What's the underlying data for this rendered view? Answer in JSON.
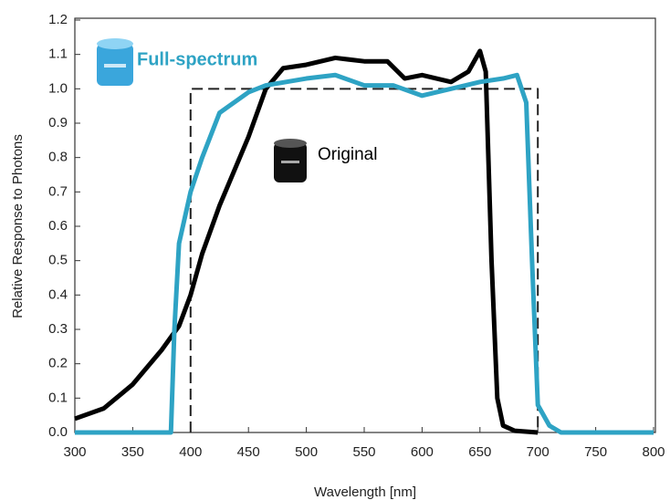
{
  "chart_data": {
    "type": "line",
    "x_label": "Wavelength [nm]",
    "y_label": "Relative Response to Photons",
    "xlim": [
      300,
      800
    ],
    "xticks": [
      300,
      350,
      400,
      450,
      500,
      550,
      600,
      650,
      700,
      750,
      800
    ],
    "ylim": [
      0,
      1.2
    ],
    "yticks": [
      {
        "value": 0,
        "label": "0.0"
      },
      0.1,
      0.2,
      0.3,
      0.4,
      0.5,
      0.6,
      0.7,
      0.8,
      0.9,
      {
        "value": 1,
        "label": "1.0"
      },
      1.1,
      1.2
    ],
    "series": [
      {
        "color": "#222222",
        "dash": true,
        "x": [
          400,
          400,
          700,
          700
        ],
        "values": [
          0,
          1,
          1,
          0
        ]
      },
      {
        "name": "Original",
        "color": "#000000",
        "x": [
          300,
          325,
          350,
          375,
          390,
          400,
          410,
          425,
          450,
          465,
          480,
          500,
          525,
          550,
          570,
          585,
          600,
          625,
          640,
          650,
          655,
          660,
          665,
          670,
          680,
          700
        ],
        "values": [
          0.04,
          0.07,
          0.14,
          0.24,
          0.31,
          0.4,
          0.52,
          0.66,
          0.86,
          1.0,
          1.06,
          1.07,
          1.09,
          1.08,
          1.08,
          1.03,
          1.04,
          1.02,
          1.05,
          1.11,
          1.05,
          0.5,
          0.1,
          0.02,
          0.005,
          0
        ]
      },
      {
        "name": "Full-spectrum",
        "color": "#2ea3c4",
        "x": [
          300,
          383,
          386,
          390,
          400,
          410,
          425,
          450,
          465,
          500,
          525,
          550,
          575,
          600,
          625,
          650,
          670,
          682,
          690,
          695,
          700,
          710,
          720,
          800
        ],
        "values": [
          0,
          0,
          0.3,
          0.55,
          0.7,
          0.8,
          0.93,
          0.99,
          1.01,
          1.03,
          1.04,
          1.01,
          1.01,
          0.98,
          1.0,
          1.02,
          1.03,
          1.04,
          0.96,
          0.5,
          0.08,
          0.02,
          0,
          0
        ]
      }
    ]
  }
}
